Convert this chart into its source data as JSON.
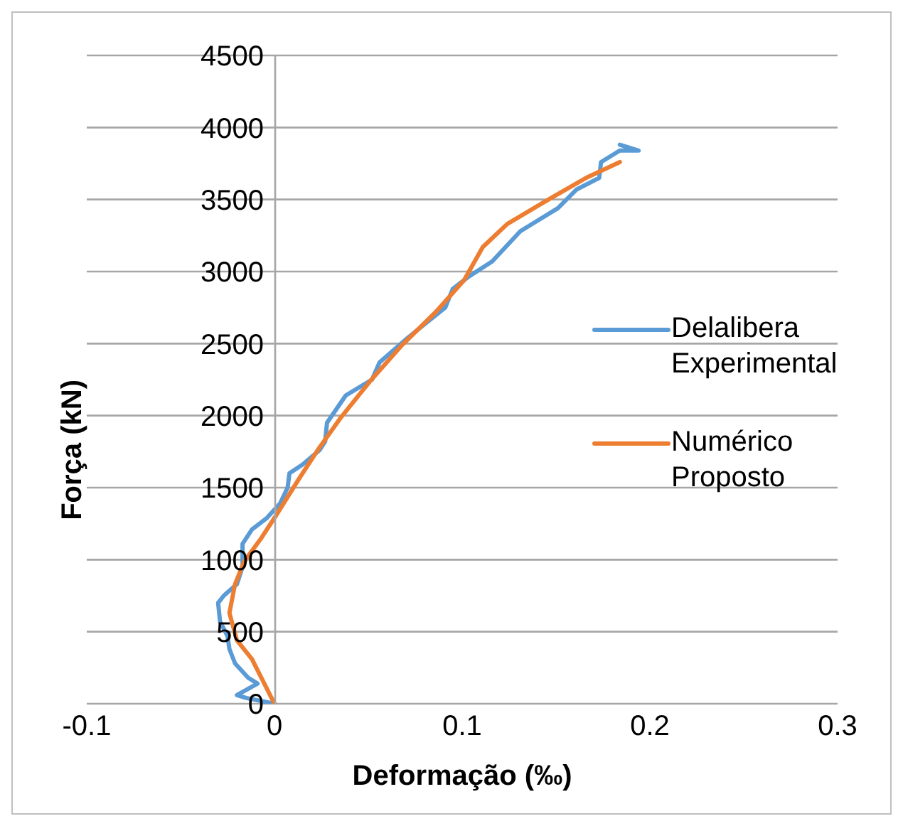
{
  "chart_data": {
    "type": "line",
    "xlabel": "Deformação (‰)",
    "ylabel": "Força (kN)",
    "xlim": [
      -0.1,
      0.3
    ],
    "xticks": [
      -0.1,
      0,
      0.1,
      0.2,
      0.3
    ],
    "ylim": [
      0,
      4500
    ],
    "yticks": [
      0,
      500,
      1000,
      1500,
      2000,
      2500,
      3000,
      3500,
      4000,
      4500
    ],
    "grid": "y",
    "legend": "right",
    "marker": "none",
    "line_style": "solid",
    "series": [
      {
        "name": "Delalibera Experimental",
        "color": "#5b9bd5",
        "x": [
          0,
          -0.015,
          -0.02,
          -0.009,
          -0.014,
          -0.021,
          -0.024,
          -0.025,
          -0.029,
          -0.03,
          -0.027,
          -0.02,
          -0.017,
          -0.017,
          -0.012,
          -0.004,
          0.003,
          0.007,
          0.008,
          0.015,
          0.024,
          0.027,
          0.028,
          0.038,
          0.052,
          0.056,
          0.071,
          0.091,
          0.095,
          0.103,
          0.116,
          0.131,
          0.151,
          0.161,
          0.173,
          0.174,
          0.184,
          0.194,
          0.184
        ],
        "values": [
          0,
          40,
          60,
          140,
          180,
          280,
          380,
          470,
          570,
          700,
          750,
          830,
          950,
          1110,
          1210,
          1290,
          1390,
          1500,
          1600,
          1660,
          1760,
          1820,
          1950,
          2140,
          2250,
          2370,
          2540,
          2750,
          2880,
          2960,
          3070,
          3280,
          3440,
          3570,
          3650,
          3760,
          3840,
          3840,
          3880
        ]
      },
      {
        "name": "Numérico Proposto",
        "color": "#ed7d31",
        "x": [
          0,
          -0.012,
          -0.02,
          -0.024,
          -0.021,
          -0.016,
          -0.007,
          0.001,
          0.013,
          0.023,
          0.035,
          0.051,
          0.068,
          0.086,
          0.101,
          0.111,
          0.124,
          0.146,
          0.166,
          0.184
        ],
        "values": [
          0,
          310,
          440,
          630,
          830,
          990,
          1150,
          1310,
          1560,
          1760,
          1980,
          2240,
          2490,
          2720,
          2940,
          3170,
          3330,
          3500,
          3650,
          3760
        ]
      }
    ]
  }
}
